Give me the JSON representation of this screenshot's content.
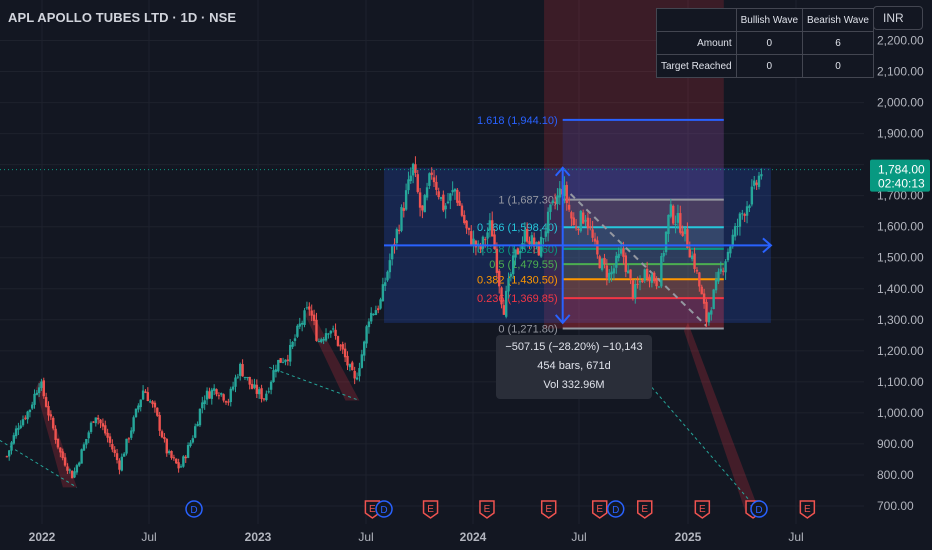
{
  "header": {
    "title": "APL APOLLO TUBES LTD · 1D · NSE",
    "currency": "INR"
  },
  "wave_table": {
    "columns": [
      "",
      "Bullish Wave",
      "Bearish Wave"
    ],
    "rows": [
      {
        "label": "Amount",
        "bullish": "0",
        "bearish": "6"
      },
      {
        "label": "Target Reached",
        "bullish": "0",
        "bearish": "0"
      }
    ]
  },
  "measure_tooltip": {
    "line1": "−507.15 (−28.20%) −10,143",
    "line2": "454 bars, 671d",
    "line3": "Vol 332.96M"
  },
  "colors": {
    "background": "#131722",
    "up": "#26a69a",
    "down": "#ef5350",
    "fib_one": "#9598a1",
    "fib_0786": "#26c6da",
    "fib_05": "#4caf50",
    "fib_0382": "#ff9800",
    "fib_0236": "#f23645",
    "fib_1618": "#2962ff",
    "price_badge": "#089981"
  },
  "chart_data": {
    "type": "candlestick",
    "title": "APL APOLLO TUBES LTD · 1D · NSE",
    "ylim": [
      680,
      2260
    ],
    "y_ticks": [
      "700.00",
      "800.00",
      "900.00",
      "1,000.00",
      "1,100.00",
      "1,200.00",
      "1,300.00",
      "1,400.00",
      "1,500.00",
      "1,600.00",
      "1,700.00",
      "1,800.00",
      "1,900.00",
      "2,000.00",
      "2,100.00",
      "2,200.00"
    ],
    "x_ticks": [
      "2022",
      "Jul",
      "2023",
      "Jul",
      "2024",
      "Jul",
      "2025",
      "Jul"
    ],
    "current_price": {
      "value": 1784,
      "label": "1,784.00",
      "countdown": "02:40:13"
    },
    "price_path": [
      {
        "date": "2021-11-01",
        "close": 860
      },
      {
        "date": "2021-11-20",
        "close": 960
      },
      {
        "date": "2021-12-10",
        "close": 1010
      },
      {
        "date": "2021-12-28",
        "close": 1105
      },
      {
        "date": "2022-01-12",
        "close": 1000
      },
      {
        "date": "2022-02-01",
        "close": 870
      },
      {
        "date": "2022-02-22",
        "close": 795
      },
      {
        "date": "2022-03-14",
        "close": 900
      },
      {
        "date": "2022-04-01",
        "close": 1000
      },
      {
        "date": "2022-04-22",
        "close": 920
      },
      {
        "date": "2022-05-12",
        "close": 830
      },
      {
        "date": "2022-06-01",
        "close": 950
      },
      {
        "date": "2022-06-22",
        "close": 1080
      },
      {
        "date": "2022-07-12",
        "close": 1000
      },
      {
        "date": "2022-08-01",
        "close": 870
      },
      {
        "date": "2022-08-22",
        "close": 820
      },
      {
        "date": "2022-09-12",
        "close": 920
      },
      {
        "date": "2022-10-01",
        "close": 1050
      },
      {
        "date": "2022-10-22",
        "close": 1080
      },
      {
        "date": "2022-11-12",
        "close": 1040
      },
      {
        "date": "2022-12-01",
        "close": 1150
      },
      {
        "date": "2022-12-22",
        "close": 1080
      },
      {
        "date": "2023-01-12",
        "close": 1050
      },
      {
        "date": "2023-02-01",
        "close": 1160
      },
      {
        "date": "2023-02-22",
        "close": 1190
      },
      {
        "date": "2023-03-12",
        "close": 1280
      },
      {
        "date": "2023-03-28",
        "close": 1340
      },
      {
        "date": "2023-04-12",
        "close": 1230
      },
      {
        "date": "2023-05-01",
        "close": 1280
      },
      {
        "date": "2023-05-22",
        "close": 1200
      },
      {
        "date": "2023-06-12",
        "close": 1100
      },
      {
        "date": "2023-06-28",
        "close": 1220
      },
      {
        "date": "2023-07-05",
        "close": 1310
      },
      {
        "date": "2023-07-25",
        "close": 1350
      },
      {
        "date": "2023-08-12",
        "close": 1500
      },
      {
        "date": "2023-09-01",
        "close": 1650
      },
      {
        "date": "2023-09-20",
        "close": 1790
      },
      {
        "date": "2023-10-05",
        "close": 1630
      },
      {
        "date": "2023-10-22",
        "close": 1780
      },
      {
        "date": "2023-11-12",
        "close": 1660
      },
      {
        "date": "2023-12-01",
        "close": 1720
      },
      {
        "date": "2023-12-22",
        "close": 1580
      },
      {
        "date": "2024-01-12",
        "close": 1520
      },
      {
        "date": "2024-02-01",
        "close": 1610
      },
      {
        "date": "2024-02-22",
        "close": 1330
      },
      {
        "date": "2024-03-12",
        "close": 1500
      },
      {
        "date": "2024-04-01",
        "close": 1580
      },
      {
        "date": "2024-04-22",
        "close": 1520
      },
      {
        "date": "2024-05-12",
        "close": 1640
      },
      {
        "date": "2024-06-03",
        "close": 1730
      },
      {
        "date": "2024-06-22",
        "close": 1600
      },
      {
        "date": "2024-07-12",
        "close": 1640
      },
      {
        "date": "2024-08-01",
        "close": 1500
      },
      {
        "date": "2024-08-22",
        "close": 1440
      },
      {
        "date": "2024-09-12",
        "close": 1520
      },
      {
        "date": "2024-10-01",
        "close": 1380
      },
      {
        "date": "2024-10-22",
        "close": 1460
      },
      {
        "date": "2024-11-12",
        "close": 1420
      },
      {
        "date": "2024-12-01",
        "close": 1650
      },
      {
        "date": "2024-12-22",
        "close": 1600
      },
      {
        "date": "2025-01-12",
        "close": 1480
      },
      {
        "date": "2025-02-01",
        "close": 1300
      },
      {
        "date": "2025-02-22",
        "close": 1440
      },
      {
        "date": "2025-03-12",
        "close": 1540
      },
      {
        "date": "2025-04-01",
        "close": 1640
      },
      {
        "date": "2025-04-22",
        "close": 1720
      },
      {
        "date": "2025-05-05",
        "close": 1784
      }
    ],
    "fib_levels": [
      {
        "ratio": "0",
        "value": 1271.8,
        "label": "0 (1,271.80)"
      },
      {
        "ratio": "0.236",
        "value": 1369.85,
        "label": "0.236 (1,369.85)"
      },
      {
        "ratio": "0.382",
        "value": 1430.5,
        "label": "0.382 (1,430.50)"
      },
      {
        "ratio": "0.5",
        "value": 1479.55,
        "label": "0.5 (1,479.55)"
      },
      {
        "ratio": "0.618",
        "value": 1528.6,
        "label": "0.618 (1,528.60)"
      },
      {
        "ratio": "0.786",
        "value": 1598.4,
        "label": "0.786 (1,598.40)"
      },
      {
        "ratio": "1",
        "value": 1687.3,
        "label": "1 (1,687.30)"
      },
      {
        "ratio": "1.618",
        "value": 1944.1,
        "label": "1.618 (1,944.10)"
      }
    ],
    "events": [
      {
        "date": "2022-09-15",
        "type": "D"
      },
      {
        "date": "2023-07-12",
        "type": "E"
      },
      {
        "date": "2023-08-01",
        "type": "D"
      },
      {
        "date": "2023-10-20",
        "type": "E"
      },
      {
        "date": "2024-01-25",
        "type": "E"
      },
      {
        "date": "2024-05-10",
        "type": "E"
      },
      {
        "date": "2024-08-05",
        "type": "E"
      },
      {
        "date": "2024-09-01",
        "type": "D"
      },
      {
        "date": "2024-10-20",
        "type": "E"
      },
      {
        "date": "2025-01-25",
        "type": "E"
      },
      {
        "date": "2025-04-20",
        "type": "E"
      },
      {
        "date": "2025-04-30",
        "type": "D"
      },
      {
        "date": "2025-07-20",
        "type": "E"
      }
    ]
  }
}
